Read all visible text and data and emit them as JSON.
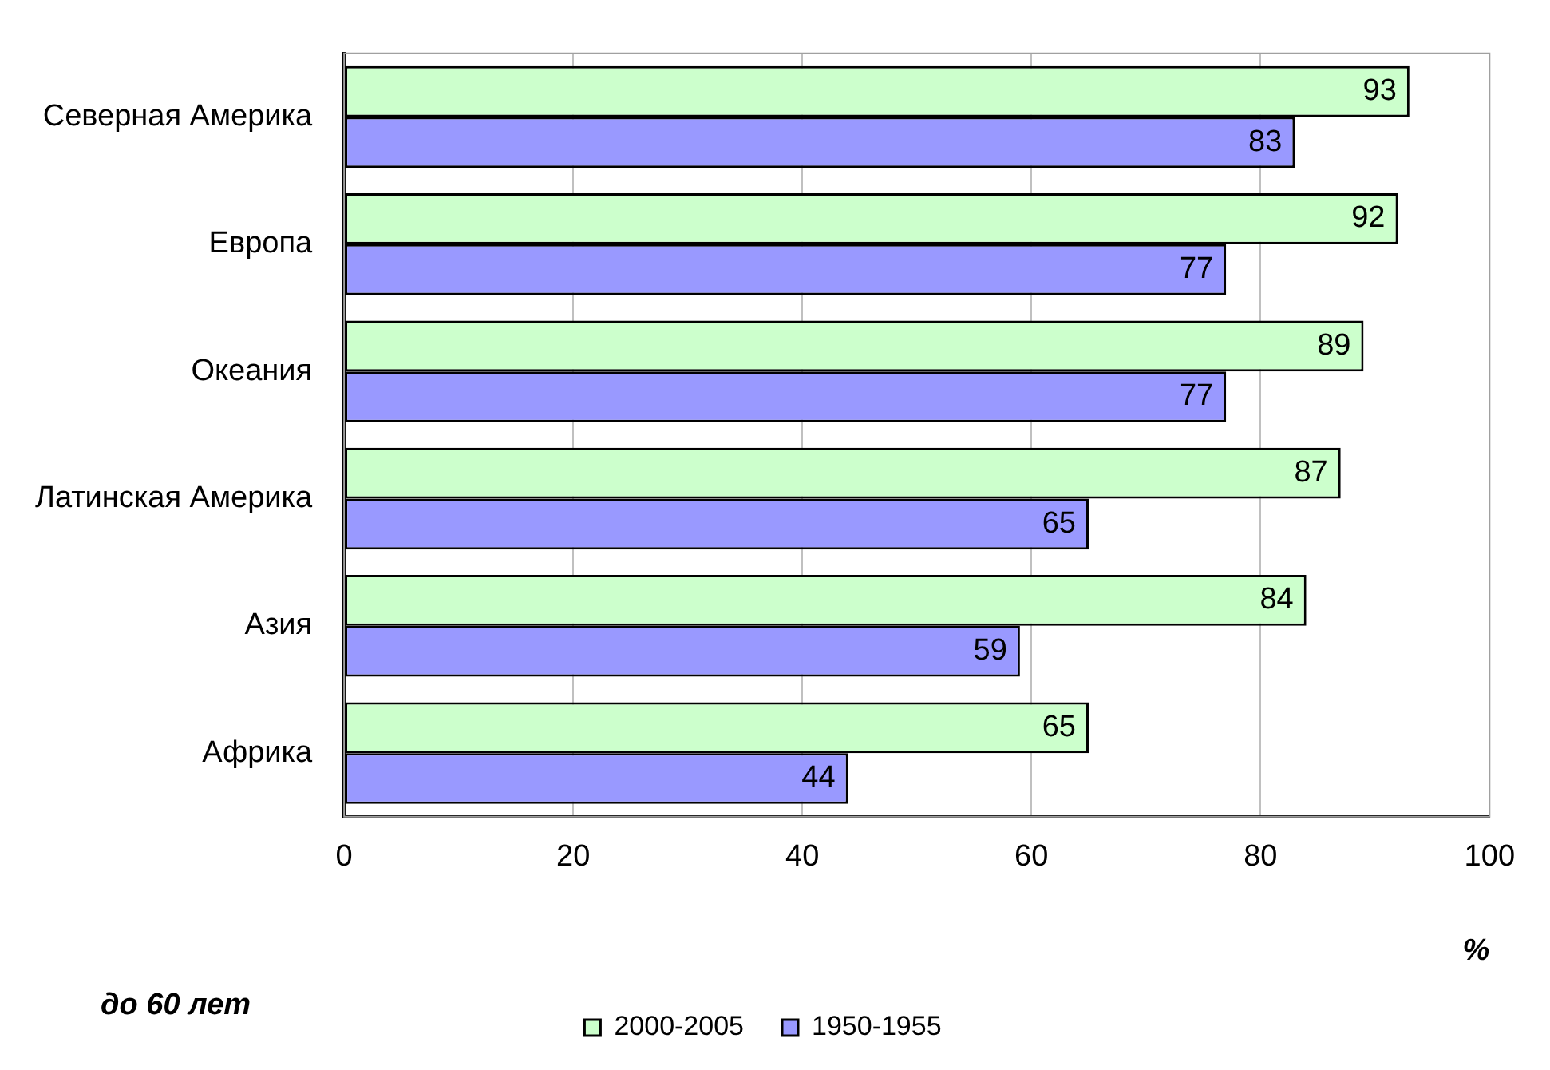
{
  "chart_data": {
    "type": "bar",
    "orientation": "horizontal",
    "categories": [
      "Северная Америка",
      "Европа",
      "Океания",
      "Латинская Америка",
      "Азия",
      "Африка"
    ],
    "series": [
      {
        "name": "2000-2005",
        "color": "#ccffcc",
        "values": [
          93,
          92,
          89,
          87,
          84,
          65
        ]
      },
      {
        "name": "1950-1955",
        "color": "#9999ff",
        "values": [
          83,
          77,
          77,
          65,
          59,
          44
        ]
      }
    ],
    "xlim": [
      0,
      100
    ],
    "xticks": [
      0,
      20,
      40,
      60,
      80,
      100
    ],
    "xlabel": "%",
    "grid": "x",
    "legend": "bottom",
    "data_labels": true,
    "annotations": [
      "до 60 лет"
    ]
  }
}
